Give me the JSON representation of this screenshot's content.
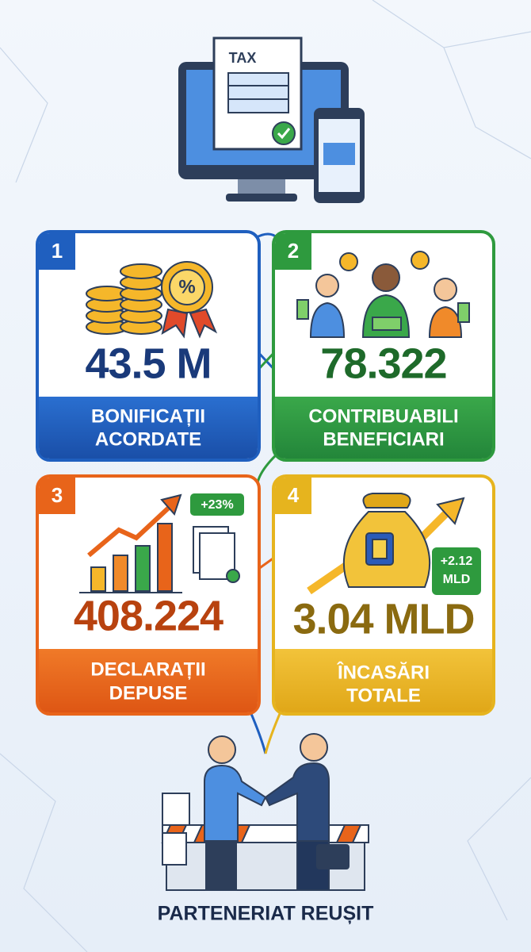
{
  "header": {
    "document_label": "TAX"
  },
  "cards": [
    {
      "number": "1",
      "value": "43.5 M",
      "label": [
        "BONIFICAȚII",
        "ACORDATE"
      ]
    },
    {
      "number": "2",
      "value": "78.322",
      "label": [
        "CONTRIBUABILI",
        "BENEFICIARI"
      ]
    },
    {
      "number": "3",
      "badge": [
        "+23%"
      ],
      "value": "408.224",
      "label": [
        "DECLARAȚII",
        "DEPUSE"
      ]
    },
    {
      "number": "4",
      "badge": [
        "+2.12",
        "MLD"
      ],
      "value": "3.04 MLD",
      "label": [
        "ÎNCASĂRI",
        "TOTALE"
      ]
    }
  ],
  "footer": {
    "title": "PARTENERIAT REUȘIT"
  }
}
